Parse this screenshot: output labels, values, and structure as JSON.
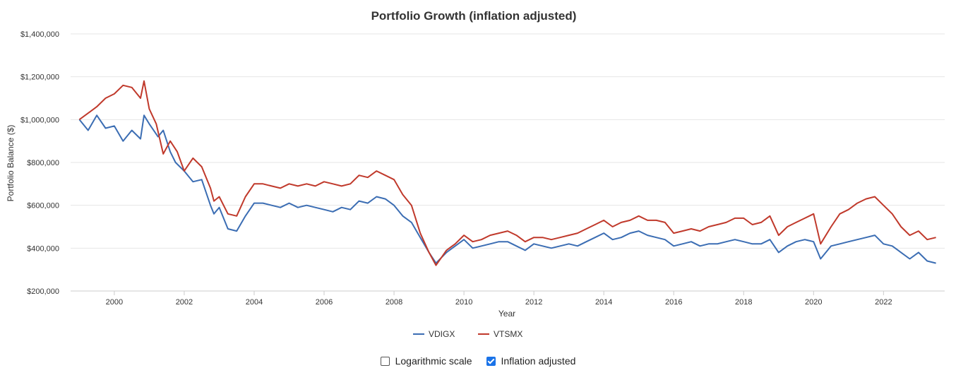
{
  "chart_data": {
    "type": "line",
    "title": "Portfolio Growth (inflation adjusted)",
    "xlabel": "Year",
    "ylabel": "Portfolio Balance ($)",
    "xlim": [
      1998.75,
      2023.75
    ],
    "ylim": [
      200000,
      1400000
    ],
    "x_ticks": [
      2000,
      2002,
      2004,
      2006,
      2008,
      2010,
      2012,
      2014,
      2016,
      2018,
      2020,
      2022
    ],
    "y_ticks": [
      200000,
      400000,
      600000,
      800000,
      1000000,
      1200000,
      1400000
    ],
    "y_tick_labels": [
      "$200,000",
      "$400,000",
      "$600,000",
      "$800,000",
      "$1,000,000",
      "$1,200,000",
      "$1,400,000"
    ],
    "grid": true,
    "legend_position": "bottom-center",
    "series": [
      {
        "name": "VDIGX",
        "color": "#3b6db3",
        "points": [
          [
            1999.0,
            1000000
          ],
          [
            1999.25,
            950000
          ],
          [
            1999.5,
            1020000
          ],
          [
            1999.75,
            960000
          ],
          [
            2000.0,
            970000
          ],
          [
            2000.25,
            900000
          ],
          [
            2000.5,
            950000
          ],
          [
            2000.75,
            910000
          ],
          [
            2000.85,
            1020000
          ],
          [
            2001.0,
            980000
          ],
          [
            2001.25,
            920000
          ],
          [
            2001.4,
            950000
          ],
          [
            2001.6,
            850000
          ],
          [
            2001.75,
            800000
          ],
          [
            2002.0,
            760000
          ],
          [
            2002.25,
            710000
          ],
          [
            2002.5,
            720000
          ],
          [
            2002.75,
            600000
          ],
          [
            2002.85,
            560000
          ],
          [
            2003.0,
            590000
          ],
          [
            2003.25,
            490000
          ],
          [
            2003.5,
            480000
          ],
          [
            2003.75,
            550000
          ],
          [
            2004.0,
            610000
          ],
          [
            2004.25,
            610000
          ],
          [
            2004.5,
            600000
          ],
          [
            2004.75,
            590000
          ],
          [
            2005.0,
            610000
          ],
          [
            2005.25,
            590000
          ],
          [
            2005.5,
            600000
          ],
          [
            2005.75,
            590000
          ],
          [
            2006.0,
            580000
          ],
          [
            2006.25,
            570000
          ],
          [
            2006.5,
            590000
          ],
          [
            2006.75,
            580000
          ],
          [
            2007.0,
            620000
          ],
          [
            2007.25,
            610000
          ],
          [
            2007.5,
            640000
          ],
          [
            2007.75,
            630000
          ],
          [
            2008.0,
            600000
          ],
          [
            2008.25,
            550000
          ],
          [
            2008.5,
            520000
          ],
          [
            2008.75,
            450000
          ],
          [
            2009.0,
            380000
          ],
          [
            2009.2,
            330000
          ],
          [
            2009.5,
            380000
          ],
          [
            2009.75,
            410000
          ],
          [
            2010.0,
            440000
          ],
          [
            2010.25,
            400000
          ],
          [
            2010.5,
            410000
          ],
          [
            2010.75,
            420000
          ],
          [
            2011.0,
            430000
          ],
          [
            2011.25,
            430000
          ],
          [
            2011.5,
            410000
          ],
          [
            2011.75,
            390000
          ],
          [
            2012.0,
            420000
          ],
          [
            2012.25,
            410000
          ],
          [
            2012.5,
            400000
          ],
          [
            2012.75,
            410000
          ],
          [
            2013.0,
            420000
          ],
          [
            2013.25,
            410000
          ],
          [
            2013.5,
            430000
          ],
          [
            2013.75,
            450000
          ],
          [
            2014.0,
            470000
          ],
          [
            2014.25,
            440000
          ],
          [
            2014.5,
            450000
          ],
          [
            2014.75,
            470000
          ],
          [
            2015.0,
            480000
          ],
          [
            2015.25,
            460000
          ],
          [
            2015.5,
            450000
          ],
          [
            2015.75,
            440000
          ],
          [
            2016.0,
            410000
          ],
          [
            2016.25,
            420000
          ],
          [
            2016.5,
            430000
          ],
          [
            2016.75,
            410000
          ],
          [
            2017.0,
            420000
          ],
          [
            2017.25,
            420000
          ],
          [
            2017.5,
            430000
          ],
          [
            2017.75,
            440000
          ],
          [
            2018.0,
            430000
          ],
          [
            2018.25,
            420000
          ],
          [
            2018.5,
            420000
          ],
          [
            2018.75,
            440000
          ],
          [
            2019.0,
            380000
          ],
          [
            2019.25,
            410000
          ],
          [
            2019.5,
            430000
          ],
          [
            2019.75,
            440000
          ],
          [
            2020.0,
            430000
          ],
          [
            2020.2,
            350000
          ],
          [
            2020.5,
            410000
          ],
          [
            2020.75,
            420000
          ],
          [
            2021.0,
            430000
          ],
          [
            2021.25,
            440000
          ],
          [
            2021.5,
            450000
          ],
          [
            2021.75,
            460000
          ],
          [
            2022.0,
            420000
          ],
          [
            2022.25,
            410000
          ],
          [
            2022.5,
            380000
          ],
          [
            2022.75,
            350000
          ],
          [
            2023.0,
            380000
          ],
          [
            2023.25,
            340000
          ],
          [
            2023.5,
            330000
          ]
        ]
      },
      {
        "name": "VTSMX",
        "color": "#c0392b",
        "points": [
          [
            1999.0,
            1000000
          ],
          [
            1999.25,
            1030000
          ],
          [
            1999.5,
            1060000
          ],
          [
            1999.75,
            1100000
          ],
          [
            2000.0,
            1120000
          ],
          [
            2000.25,
            1160000
          ],
          [
            2000.5,
            1150000
          ],
          [
            2000.75,
            1100000
          ],
          [
            2000.85,
            1180000
          ],
          [
            2001.0,
            1050000
          ],
          [
            2001.2,
            980000
          ],
          [
            2001.4,
            840000
          ],
          [
            2001.6,
            900000
          ],
          [
            2001.8,
            850000
          ],
          [
            2002.0,
            760000
          ],
          [
            2002.25,
            820000
          ],
          [
            2002.5,
            780000
          ],
          [
            2002.75,
            680000
          ],
          [
            2002.85,
            620000
          ],
          [
            2003.0,
            640000
          ],
          [
            2003.25,
            560000
          ],
          [
            2003.5,
            550000
          ],
          [
            2003.75,
            640000
          ],
          [
            2004.0,
            700000
          ],
          [
            2004.25,
            700000
          ],
          [
            2004.5,
            690000
          ],
          [
            2004.75,
            680000
          ],
          [
            2005.0,
            700000
          ],
          [
            2005.25,
            690000
          ],
          [
            2005.5,
            700000
          ],
          [
            2005.75,
            690000
          ],
          [
            2006.0,
            710000
          ],
          [
            2006.25,
            700000
          ],
          [
            2006.5,
            690000
          ],
          [
            2006.75,
            700000
          ],
          [
            2007.0,
            740000
          ],
          [
            2007.25,
            730000
          ],
          [
            2007.5,
            760000
          ],
          [
            2007.75,
            740000
          ],
          [
            2008.0,
            720000
          ],
          [
            2008.25,
            650000
          ],
          [
            2008.5,
            600000
          ],
          [
            2008.75,
            470000
          ],
          [
            2009.0,
            380000
          ],
          [
            2009.2,
            320000
          ],
          [
            2009.5,
            390000
          ],
          [
            2009.75,
            420000
          ],
          [
            2010.0,
            460000
          ],
          [
            2010.25,
            430000
          ],
          [
            2010.5,
            440000
          ],
          [
            2010.75,
            460000
          ],
          [
            2011.0,
            470000
          ],
          [
            2011.25,
            480000
          ],
          [
            2011.5,
            460000
          ],
          [
            2011.75,
            430000
          ],
          [
            2012.0,
            450000
          ],
          [
            2012.25,
            450000
          ],
          [
            2012.5,
            440000
          ],
          [
            2012.75,
            450000
          ],
          [
            2013.0,
            460000
          ],
          [
            2013.25,
            470000
          ],
          [
            2013.5,
            490000
          ],
          [
            2013.75,
            510000
          ],
          [
            2014.0,
            530000
          ],
          [
            2014.25,
            500000
          ],
          [
            2014.5,
            520000
          ],
          [
            2014.75,
            530000
          ],
          [
            2015.0,
            550000
          ],
          [
            2015.25,
            530000
          ],
          [
            2015.5,
            530000
          ],
          [
            2015.75,
            520000
          ],
          [
            2016.0,
            470000
          ],
          [
            2016.25,
            480000
          ],
          [
            2016.5,
            490000
          ],
          [
            2016.75,
            480000
          ],
          [
            2017.0,
            500000
          ],
          [
            2017.25,
            510000
          ],
          [
            2017.5,
            520000
          ],
          [
            2017.75,
            540000
          ],
          [
            2018.0,
            540000
          ],
          [
            2018.25,
            510000
          ],
          [
            2018.5,
            520000
          ],
          [
            2018.75,
            550000
          ],
          [
            2019.0,
            460000
          ],
          [
            2019.25,
            500000
          ],
          [
            2019.5,
            520000
          ],
          [
            2019.75,
            540000
          ],
          [
            2020.0,
            560000
          ],
          [
            2020.2,
            420000
          ],
          [
            2020.5,
            500000
          ],
          [
            2020.75,
            560000
          ],
          [
            2021.0,
            580000
          ],
          [
            2021.25,
            610000
          ],
          [
            2021.5,
            630000
          ],
          [
            2021.75,
            640000
          ],
          [
            2022.0,
            600000
          ],
          [
            2022.25,
            560000
          ],
          [
            2022.5,
            500000
          ],
          [
            2022.75,
            460000
          ],
          [
            2023.0,
            480000
          ],
          [
            2023.25,
            440000
          ],
          [
            2023.5,
            450000
          ]
        ]
      }
    ]
  },
  "controls": {
    "log_scale": {
      "label": "Logarithmic scale",
      "checked": false
    },
    "inflation_adjusted": {
      "label": "Inflation adjusted",
      "checked": true
    }
  }
}
